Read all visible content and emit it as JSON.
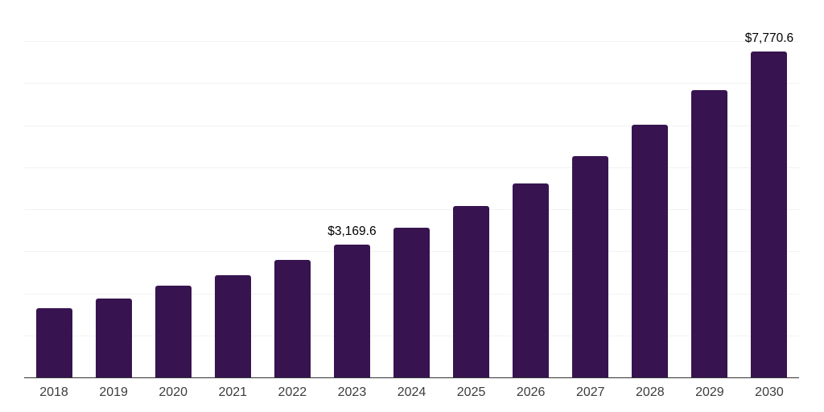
{
  "chart": {
    "background_color": "#ffffff",
    "bar_color": "#371450",
    "gridline_color": "#f2f2f2",
    "axis_line_color": "#333333",
    "tick_label_color": "#3c3c3c",
    "data_label_color": "#000000"
  },
  "chart_data": {
    "type": "bar",
    "title": "",
    "xlabel": "",
    "ylabel": "",
    "categories": [
      "2018",
      "2019",
      "2020",
      "2021",
      "2022",
      "2023",
      "2024",
      "2025",
      "2026",
      "2027",
      "2028",
      "2029",
      "2030"
    ],
    "values": [
      1670,
      1890,
      2200,
      2460,
      2810,
      3169.6,
      3580,
      4100,
      4640,
      5280,
      6030,
      6860,
      7770.6
    ],
    "data_labels": [
      {
        "index": 5,
        "text": "$3,169.6"
      },
      {
        "index": 12,
        "text": "$7,770.6"
      }
    ],
    "ylim": [
      0,
      9000
    ],
    "gridline_interval": 1000,
    "grid": true,
    "legend_position": "none",
    "y_tick_labels_visible": false
  }
}
